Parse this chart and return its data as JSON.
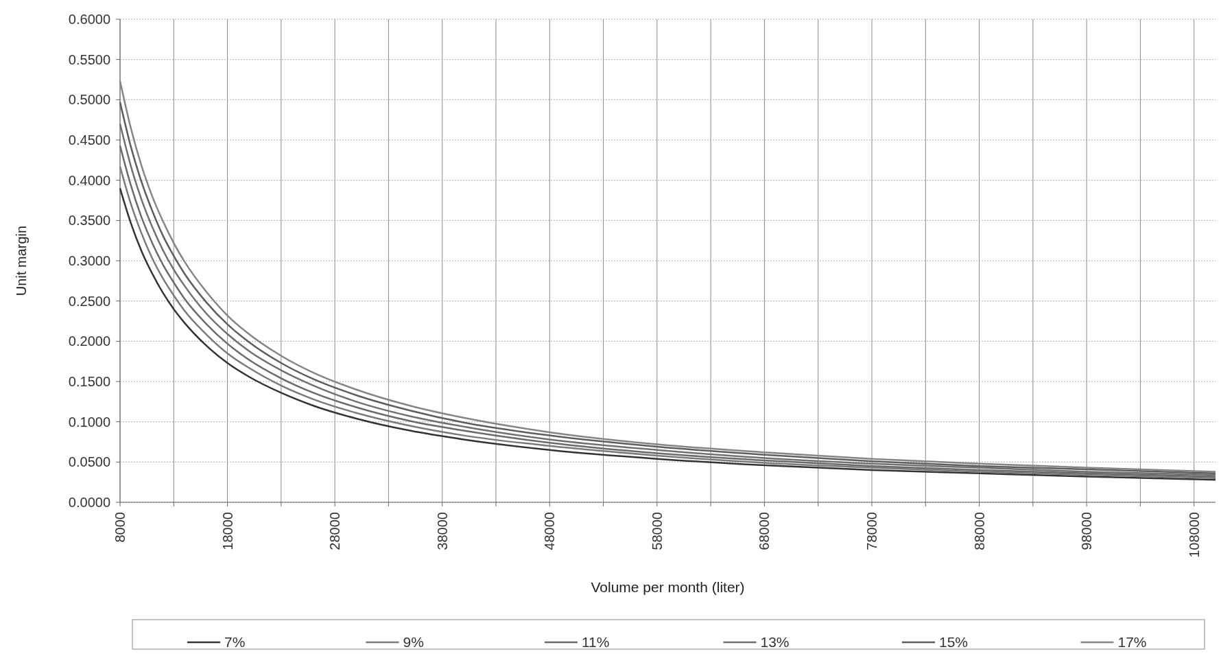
{
  "chart_data": {
    "type": "line",
    "xlabel": "Volume per month (liter)",
    "ylabel": "Unit margin",
    "x": [
      8000,
      9000,
      10000,
      11000,
      12000,
      13000,
      14000,
      16000,
      18000,
      20000,
      23000,
      26000,
      30000,
      35000,
      40000,
      48000,
      58000,
      68000,
      78000,
      88000,
      98000,
      110000
    ],
    "series": [
      {
        "name": "7%",
        "color": "#333333",
        "values": [
          0.39,
          0.347,
          0.312,
          0.284,
          0.26,
          0.24,
          0.223,
          0.195,
          0.173,
          0.156,
          0.136,
          0.12,
          0.104,
          0.089,
          0.078,
          0.065,
          0.054,
          0.046,
          0.04,
          0.036,
          0.032,
          0.028
        ]
      },
      {
        "name": "9%",
        "color": "#7a7a7a",
        "values": [
          0.417,
          0.371,
          0.334,
          0.303,
          0.278,
          0.257,
          0.238,
          0.209,
          0.185,
          0.167,
          0.145,
          0.128,
          0.111,
          0.095,
          0.083,
          0.07,
          0.058,
          0.049,
          0.043,
          0.038,
          0.034,
          0.03
        ]
      },
      {
        "name": "11%",
        "color": "#6a6a6a",
        "values": [
          0.443,
          0.394,
          0.354,
          0.322,
          0.295,
          0.273,
          0.253,
          0.222,
          0.197,
          0.177,
          0.154,
          0.136,
          0.118,
          0.101,
          0.089,
          0.074,
          0.061,
          0.052,
          0.045,
          0.04,
          0.036,
          0.032
        ]
      },
      {
        "name": "13%",
        "color": "#707070",
        "values": [
          0.47,
          0.418,
          0.376,
          0.342,
          0.313,
          0.289,
          0.269,
          0.235,
          0.209,
          0.188,
          0.164,
          0.145,
          0.125,
          0.107,
          0.094,
          0.078,
          0.065,
          0.055,
          0.048,
          0.043,
          0.038,
          0.034
        ]
      },
      {
        "name": "15%",
        "color": "#5e5e5e",
        "values": [
          0.497,
          0.442,
          0.398,
          0.362,
          0.331,
          0.306,
          0.284,
          0.249,
          0.221,
          0.199,
          0.173,
          0.153,
          0.133,
          0.114,
          0.099,
          0.083,
          0.069,
          0.059,
          0.051,
          0.045,
          0.041,
          0.036
        ]
      },
      {
        "name": "17%",
        "color": "#858585",
        "values": [
          0.523,
          0.465,
          0.418,
          0.38,
          0.349,
          0.322,
          0.299,
          0.262,
          0.232,
          0.209,
          0.182,
          0.161,
          0.14,
          0.12,
          0.105,
          0.087,
          0.072,
          0.062,
          0.054,
          0.048,
          0.043,
          0.038
        ]
      }
    ],
    "xlim": [
      8000,
      110000
    ],
    "xticks": [
      8000,
      {
        "value": 13000,
        "label": null
      },
      18000,
      {
        "value": 23000,
        "label": null
      },
      28000,
      {
        "value": 33000,
        "label": null
      },
      38000,
      {
        "value": 43000,
        "label": null
      },
      48000,
      {
        "value": 53000,
        "label": null
      },
      58000,
      {
        "value": 63000,
        "label": null
      },
      68000,
      {
        "value": 73000,
        "label": null
      },
      78000,
      {
        "value": 83000,
        "label": null
      },
      88000,
      {
        "value": 93000,
        "label": null
      },
      98000,
      {
        "value": 103000,
        "label": null
      },
      108000
    ],
    "ylim": [
      0,
      0.6
    ],
    "yticks": [
      {
        "value": 0,
        "label": "0.0000"
      },
      {
        "value": 0.05,
        "label": "0.0500"
      },
      {
        "value": 0.1,
        "label": "0.1000"
      },
      {
        "value": 0.15,
        "label": "0.1500"
      },
      {
        "value": 0.2,
        "label": "0.2000"
      },
      {
        "value": 0.25,
        "label": "0.2500"
      },
      {
        "value": 0.3,
        "label": "0.3000"
      },
      {
        "value": 0.35,
        "label": "0.3500"
      },
      {
        "value": 0.4,
        "label": "0.4000"
      },
      {
        "value": 0.45,
        "label": "0.4500"
      },
      {
        "value": 0.5,
        "label": "0.5000"
      },
      {
        "value": 0.55,
        "label": "0.5500"
      },
      {
        "value": 0.6,
        "label": "0.6000"
      }
    ],
    "grid": true,
    "legend": "bottom",
    "marker": "none",
    "line_style": "solid"
  }
}
